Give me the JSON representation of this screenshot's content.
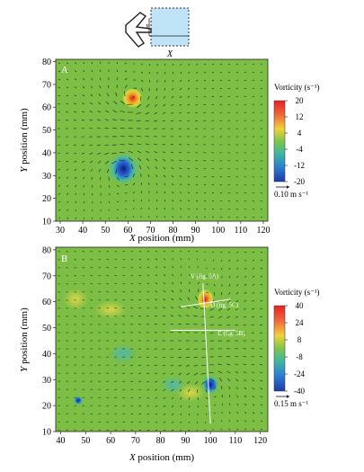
{
  "schematic": {
    "x_label": "X",
    "y_label": "Y"
  },
  "chart_data": [
    {
      "type": "heatmap",
      "panel_label": "A",
      "xlabel_prefix": "X",
      "xlabel_rest": " position (mm)",
      "ylabel_prefix": "Y",
      "ylabel_rest": " position (mm)",
      "xlim": [
        28,
        122
      ],
      "ylim": [
        10,
        81
      ],
      "xticks": [
        30,
        40,
        50,
        60,
        70,
        80,
        90,
        100,
        110,
        120
      ],
      "yticks": [
        10,
        20,
        30,
        40,
        50,
        60,
        70,
        80
      ],
      "colorbar": {
        "title": "Vorticity (s⁻¹)",
        "ticks": [
          20,
          12,
          4,
          -4,
          -12,
          -20
        ],
        "range": [
          -20,
          20
        ]
      },
      "scale_arrow_label": "0.10 m s⁻¹",
      "vortices": [
        {
          "x": 62,
          "y": 64,
          "vorticity": 20,
          "sign": "positive"
        },
        {
          "x": 58,
          "y": 33,
          "vorticity": -20,
          "sign": "negative"
        }
      ],
      "annotations": []
    },
    {
      "type": "heatmap",
      "panel_label": "B",
      "xlabel_prefix": "X",
      "xlabel_rest": " position (mm)",
      "ylabel_prefix": "Y",
      "ylabel_rest": " position (mm)",
      "xlim": [
        38,
        123
      ],
      "ylim": [
        10,
        81
      ],
      "xticks": [
        40,
        50,
        60,
        70,
        80,
        90,
        100,
        110,
        120
      ],
      "yticks": [
        10,
        20,
        30,
        40,
        50,
        60,
        70,
        80
      ],
      "colorbar": {
        "title": "Vorticity (s⁻¹)",
        "ticks": [
          40,
          24,
          8,
          -8,
          -24,
          -40
        ],
        "range": [
          -40,
          40
        ]
      },
      "scale_arrow_label": "0.15 m s⁻¹",
      "vortices": [
        {
          "x": 98,
          "y": 61,
          "vorticity": 40,
          "sign": "positive"
        },
        {
          "x": 100,
          "y": 28,
          "vorticity": -40,
          "sign": "negative"
        },
        {
          "x": 47,
          "y": 22,
          "vorticity": -15,
          "sign": "negative"
        }
      ],
      "annotations": [
        "V (fig. 5A)",
        "D (fig. 5C)",
        "E (fig. 5B)"
      ]
    }
  ]
}
